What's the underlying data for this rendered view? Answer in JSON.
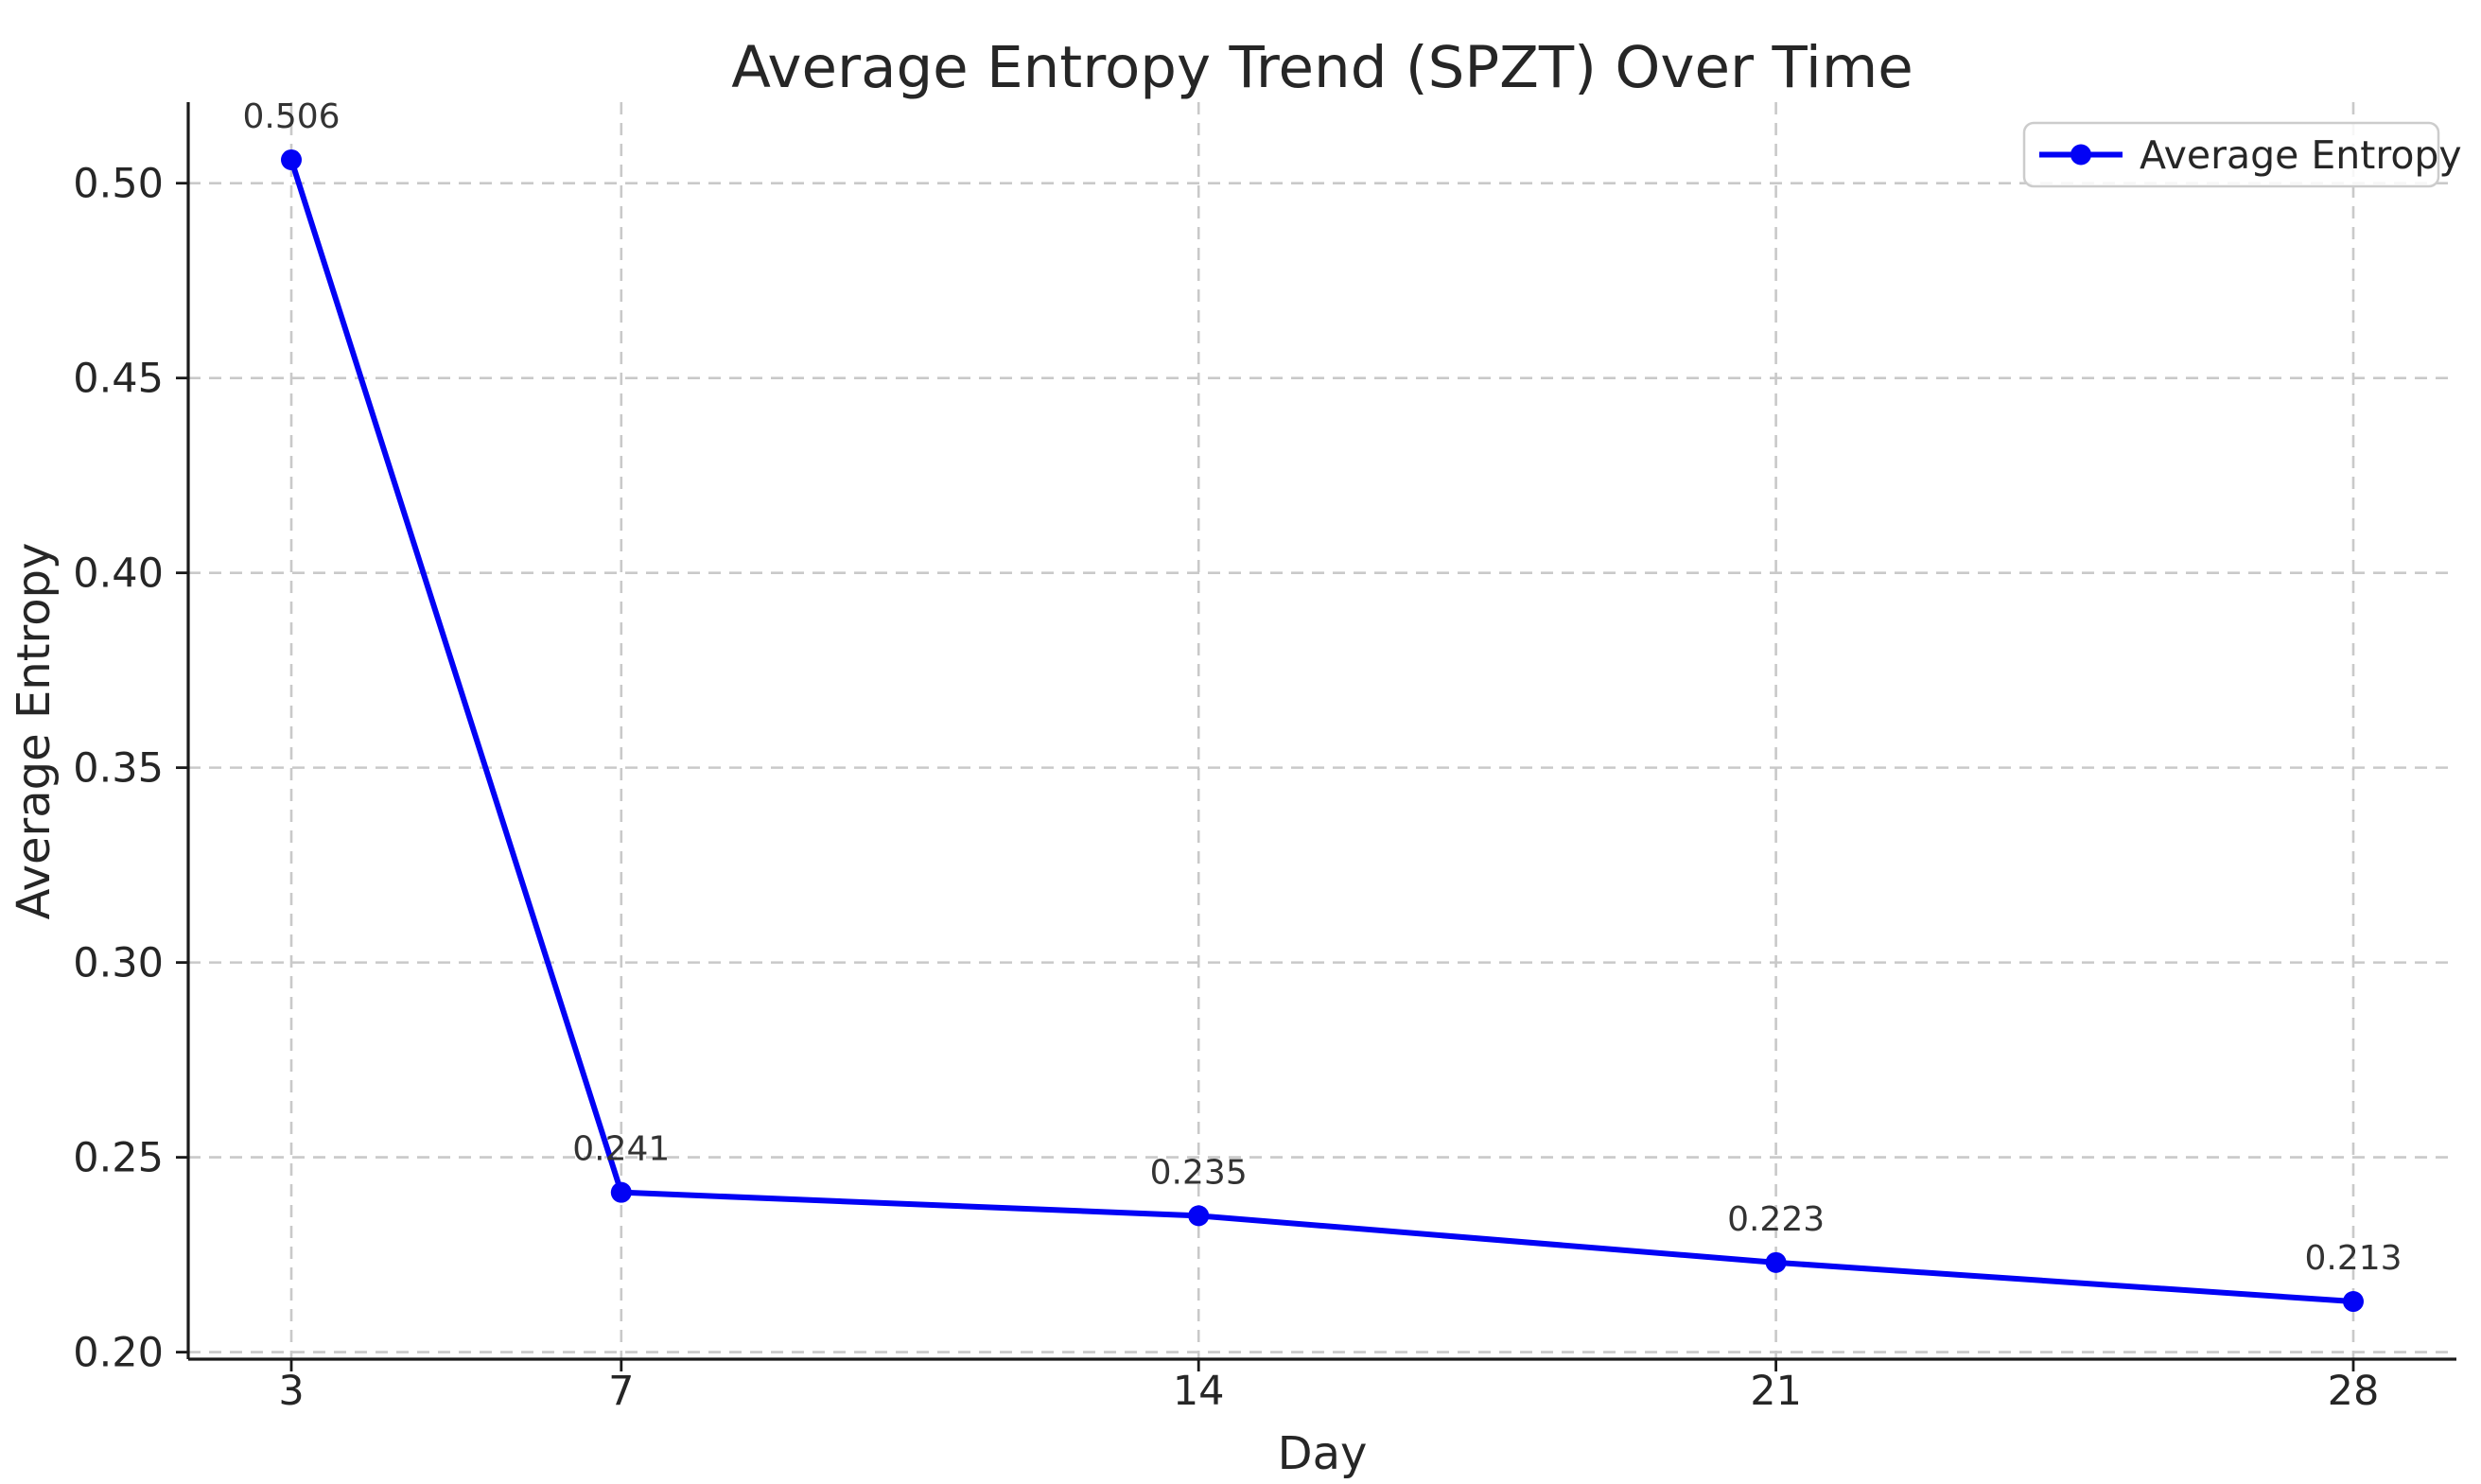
{
  "chart_data": {
    "type": "line",
    "title": "Average Entropy Trend (SPZT) Over Time",
    "xlabel": "Day",
    "ylabel": "Average Entropy",
    "x": [
      3,
      7,
      14,
      21,
      28
    ],
    "series": [
      {
        "name": "Average Entropy",
        "values": [
          0.506,
          0.241,
          0.235,
          0.223,
          0.213
        ]
      }
    ],
    "point_labels": [
      "0.506",
      "0.241",
      "0.235",
      "0.223",
      "0.213"
    ],
    "xticks": [
      "3",
      "7",
      "14",
      "21",
      "28"
    ],
    "yticks": [
      0.2,
      0.25,
      0.3,
      0.35,
      0.4,
      0.45,
      0.5
    ],
    "ytick_labels": [
      "0.20",
      "0.25",
      "0.30",
      "0.35",
      "0.40",
      "0.45",
      "0.50"
    ],
    "xlim": [
      1.75,
      29.25
    ],
    "ylim": [
      0.1982,
      0.5208
    ],
    "grid": "dashed both directions",
    "legend": {
      "position": "upper right",
      "entries": [
        "Average Entropy"
      ]
    },
    "marker": "circle",
    "colors": {
      "line": "#0202f5",
      "grid": "#c9c9c9",
      "spine": "#1a1a1a",
      "text": "#262626",
      "point_label": "#333333",
      "legend_border": "#cccccc",
      "background": "#ffffff"
    }
  }
}
